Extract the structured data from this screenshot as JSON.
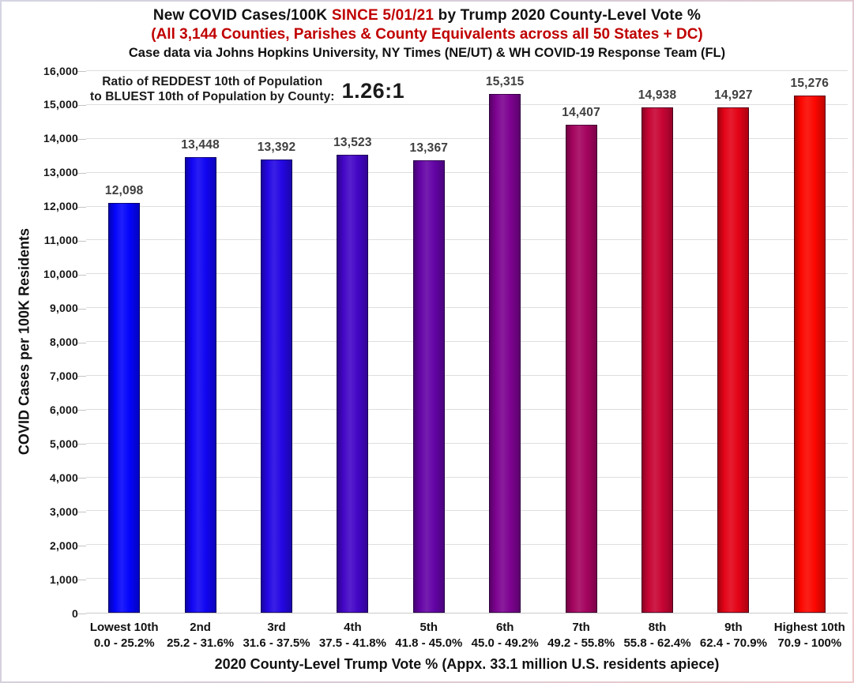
{
  "page": {
    "title_parts": {
      "pre": "New COVID Cases/100K ",
      "highlight": "SINCE 5/01/21",
      "post": " by Trump 2020 County-Level Vote %"
    },
    "subtitle": "(All 3,144 Counties, Parishes & County Equivalents across all 50 States + DC)",
    "source_line": "Case data via Johns Hopkins University, NY Times (NE/UT) & WH COVID-19 Response Team (FL)",
    "annotation": {
      "line1": "Ratio of REDDEST 10th of Population",
      "line2": "to BLUEST 10th of Population by County:",
      "ratio": "1.26:1"
    },
    "colors": {
      "title_highlight": "#C00000",
      "subtitle_red": "#C00000",
      "data_label_gray": "#3F3F3F",
      "gridline": "#DEDEDE",
      "axis_line": "#C9C9C9"
    }
  },
  "chart_data": {
    "type": "bar",
    "title": "New COVID Cases/100K SINCE 5/01/21 by Trump 2020 County-Level Vote %",
    "subtitle": "(All 3,144 Counties, Parishes & County Equivalents across all 50 States + DC)",
    "source": "Case data via Johns Hopkins University, NY Times (NE/UT) & WH COVID-19 Response Team (FL)",
    "annotation": "Ratio of REDDEST 10th of Population to BLUEST 10th of Population by County: 1.26:1",
    "categories": [
      "Lowest 10th",
      "2nd",
      "3rd",
      "4th",
      "5th",
      "6th",
      "7th",
      "8th",
      "9th",
      "Highest 10th"
    ],
    "category_ranges": [
      "0.0 - 25.2%",
      "25.2 - 31.6%",
      "31.6 - 37.5%",
      "37.5 - 41.8%",
      "41.8 - 45.0%",
      "45.0 - 49.2%",
      "49.2 - 55.8%",
      "55.8 - 62.4%",
      "62.4 - 70.9%",
      "70.9 - 100%"
    ],
    "values": [
      12098,
      13448,
      13392,
      13523,
      13367,
      15315,
      14407,
      14938,
      14927,
      15276
    ],
    "value_labels": [
      "12,098",
      "13,448",
      "13,392",
      "13,523",
      "13,367",
      "15,315",
      "14,407",
      "14,938",
      "14,927",
      "15,276"
    ],
    "bar_colors": [
      "#0505fc",
      "#1105f2",
      "#2407e3",
      "#4306c6",
      "#6404a6",
      "#7d0391",
      "#a4045f",
      "#c70434",
      "#e30317",
      "#fb0700"
    ],
    "xlabel": "2020 County-Level Trump Vote % (Appx. 33.1 million U.S. residents apiece)",
    "ylabel": "COVID Cases per 100K Residents",
    "ylim": [
      0,
      16000
    ],
    "ytick_step": 1000,
    "ytick_labels": [
      "0",
      "1,000",
      "2,000",
      "3,000",
      "4,000",
      "5,000",
      "6,000",
      "7,000",
      "8,000",
      "9,000",
      "10,000",
      "11,000",
      "12,000",
      "13,000",
      "14,000",
      "15,000",
      "16,000"
    ],
    "grid": "horizontal",
    "legend": "none"
  }
}
